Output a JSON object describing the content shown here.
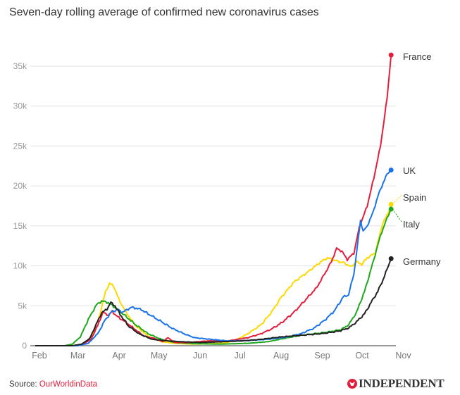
{
  "chart_data": {
    "type": "line",
    "title": "Seven-day rolling average of confirmed new coronavirus cases",
    "xlabel": "",
    "ylabel": "",
    "ylim": [
      0,
      35000
    ],
    "grid": true,
    "legend": "end-of-line labels (right)",
    "y_ticks": [
      {
        "value": 0,
        "label": "0"
      },
      {
        "value": 5000,
        "label": "5k"
      },
      {
        "value": 10000,
        "label": "10k"
      },
      {
        "value": 15000,
        "label": "15k"
      },
      {
        "value": 20000,
        "label": "20k"
      },
      {
        "value": 25000,
        "label": "25k"
      },
      {
        "value": 30000,
        "label": "30k"
      },
      {
        "value": 35000,
        "label": "35k"
      }
    ],
    "x_ticks": [
      "Feb",
      "Mar",
      "Apr",
      "May",
      "Jun",
      "Jul",
      "Aug",
      "Sep",
      "Oct",
      "Nov"
    ],
    "x_unit": "days since Feb 1",
    "series": [
      {
        "name": "Spain",
        "color": "#ffd800",
        "points": [
          [
            0,
            0
          ],
          [
            25,
            0
          ],
          [
            35,
            100
          ],
          [
            42,
            900
          ],
          [
            48,
            3500
          ],
          [
            53,
            6800
          ],
          [
            56,
            7800
          ],
          [
            59,
            7500
          ],
          [
            63,
            5800
          ],
          [
            68,
            4300
          ],
          [
            75,
            2600
          ],
          [
            85,
            1200
          ],
          [
            95,
            500
          ],
          [
            105,
            300
          ],
          [
            120,
            200
          ],
          [
            140,
            300
          ],
          [
            150,
            600
          ],
          [
            160,
            1500
          ],
          [
            170,
            2600
          ],
          [
            178,
            4200
          ],
          [
            185,
            6000
          ],
          [
            195,
            8000
          ],
          [
            205,
            9200
          ],
          [
            215,
            10500
          ],
          [
            220,
            11000
          ],
          [
            227,
            10600
          ],
          [
            232,
            10400
          ],
          [
            238,
            9900
          ],
          [
            242,
            10500
          ],
          [
            246,
            10200
          ],
          [
            250,
            11000
          ],
          [
            256,
            11600
          ],
          [
            262,
            15500
          ],
          [
            265,
            16300
          ],
          [
            268,
            17700
          ]
        ]
      },
      {
        "name": "Italy",
        "color": "#1fa81f",
        "points": [
          [
            0,
            0
          ],
          [
            22,
            0
          ],
          [
            28,
            200
          ],
          [
            34,
            1100
          ],
          [
            40,
            3300
          ],
          [
            46,
            5100
          ],
          [
            50,
            5600
          ],
          [
            55,
            5400
          ],
          [
            60,
            4800
          ],
          [
            66,
            4000
          ],
          [
            75,
            2700
          ],
          [
            85,
            1500
          ],
          [
            95,
            800
          ],
          [
            105,
            400
          ],
          [
            120,
            250
          ],
          [
            140,
            200
          ],
          [
            160,
            300
          ],
          [
            175,
            500
          ],
          [
            190,
            1000
          ],
          [
            200,
            1300
          ],
          [
            210,
            1500
          ],
          [
            220,
            1700
          ],
          [
            230,
            2000
          ],
          [
            236,
            2600
          ],
          [
            242,
            4200
          ],
          [
            248,
            6800
          ],
          [
            254,
            10200
          ],
          [
            260,
            13800
          ],
          [
            265,
            16000
          ],
          [
            268,
            17100
          ]
        ]
      },
      {
        "name": "France",
        "color": "#e31e3c",
        "points": [
          [
            0,
            0
          ],
          [
            30,
            0
          ],
          [
            36,
            200
          ],
          [
            42,
            800
          ],
          [
            47,
            2500
          ],
          [
            51,
            4200
          ],
          [
            55,
            3800
          ],
          [
            58,
            4300
          ],
          [
            62,
            3600
          ],
          [
            68,
            3000
          ],
          [
            74,
            2200
          ],
          [
            82,
            1200
          ],
          [
            90,
            900
          ],
          [
            96,
            500
          ],
          [
            100,
            1000
          ],
          [
            105,
            400
          ],
          [
            115,
            400
          ],
          [
            130,
            600
          ],
          [
            145,
            600
          ],
          [
            160,
            1000
          ],
          [
            170,
            1500
          ],
          [
            178,
            2100
          ],
          [
            185,
            2800
          ],
          [
            195,
            4200
          ],
          [
            205,
            6000
          ],
          [
            212,
            7300
          ],
          [
            218,
            9000
          ],
          [
            223,
            10500
          ],
          [
            227,
            12200
          ],
          [
            231,
            11800
          ],
          [
            235,
            10800
          ],
          [
            240,
            11600
          ],
          [
            244,
            14800
          ],
          [
            250,
            17500
          ],
          [
            255,
            21000
          ],
          [
            260,
            25000
          ],
          [
            265,
            31000
          ],
          [
            268,
            36400
          ]
        ]
      },
      {
        "name": "UK",
        "color": "#1a73e8",
        "points": [
          [
            0,
            0
          ],
          [
            32,
            0
          ],
          [
            40,
            300
          ],
          [
            47,
            1500
          ],
          [
            53,
            3300
          ],
          [
            58,
            4300
          ],
          [
            62,
            4500
          ],
          [
            66,
            4200
          ],
          [
            72,
            4800
          ],
          [
            76,
            4700
          ],
          [
            80,
            4500
          ],
          [
            88,
            3700
          ],
          [
            96,
            2900
          ],
          [
            104,
            2100
          ],
          [
            112,
            1500
          ],
          [
            120,
            1000
          ],
          [
            132,
            800
          ],
          [
            145,
            600
          ],
          [
            160,
            650
          ],
          [
            175,
            800
          ],
          [
            190,
            1100
          ],
          [
            200,
            1500
          ],
          [
            210,
            2200
          ],
          [
            218,
            3200
          ],
          [
            225,
            4300
          ],
          [
            232,
            6100
          ],
          [
            236,
            6400
          ],
          [
            240,
            9000
          ],
          [
            243,
            13000
          ],
          [
            245,
            15700
          ],
          [
            247,
            14300
          ],
          [
            250,
            15000
          ],
          [
            254,
            16500
          ],
          [
            258,
            18700
          ],
          [
            262,
            20400
          ],
          [
            265,
            21500
          ],
          [
            268,
            22000
          ]
        ]
      },
      {
        "name": "Germany",
        "color": "#222222",
        "points": [
          [
            0,
            0
          ],
          [
            28,
            0
          ],
          [
            35,
            200
          ],
          [
            41,
            900
          ],
          [
            46,
            2700
          ],
          [
            50,
            4100
          ],
          [
            54,
            4600
          ],
          [
            57,
            5400
          ],
          [
            60,
            5000
          ],
          [
            64,
            3900
          ],
          [
            70,
            2500
          ],
          [
            78,
            1500
          ],
          [
            88,
            800
          ],
          [
            100,
            600
          ],
          [
            110,
            500
          ],
          [
            125,
            400
          ],
          [
            140,
            500
          ],
          [
            155,
            600
          ],
          [
            170,
            800
          ],
          [
            185,
            1100
          ],
          [
            200,
            1300
          ],
          [
            215,
            1500
          ],
          [
            228,
            1800
          ],
          [
            236,
            2200
          ],
          [
            242,
            3000
          ],
          [
            248,
            4000
          ],
          [
            254,
            5700
          ],
          [
            258,
            6800
          ],
          [
            262,
            8300
          ],
          [
            265,
            9600
          ],
          [
            268,
            10900
          ]
        ]
      }
    ]
  },
  "title": "Seven-day rolling average of confirmed new coronavirus cases",
  "source": {
    "label": "Source:",
    "link_text": "OurWorldinData"
  },
  "brand": {
    "name": "INDEPENDENT"
  },
  "colors": {
    "france": "#e31e3c",
    "uk": "#1a73e8",
    "spain": "#ffd800",
    "italy": "#1fa81f",
    "germany": "#222222",
    "source_link": "#e31e3c"
  }
}
